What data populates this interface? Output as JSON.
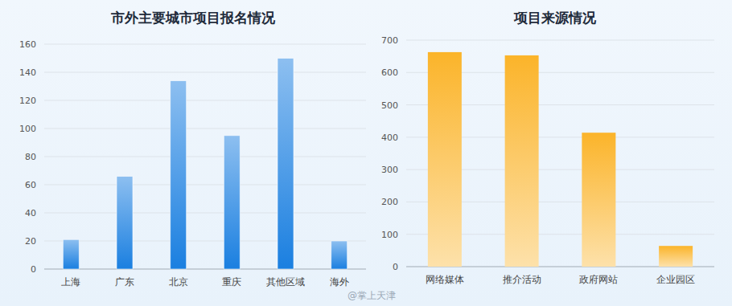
{
  "chart_data": [
    {
      "type": "bar",
      "title": "市外主要城市项目报名情况",
      "categories": [
        "上海",
        "广东",
        "北京",
        "重庆",
        "其他区域",
        "海外"
      ],
      "values": [
        21,
        66,
        134,
        95,
        150,
        20
      ],
      "color": "#1a7fe0",
      "ylim": [
        0,
        160
      ],
      "yticks": [
        0,
        20,
        40,
        60,
        80,
        100,
        120,
        140,
        160
      ],
      "grid": true
    },
    {
      "type": "bar",
      "title": "项目来源情况",
      "categories": [
        "网络媒体",
        "推介活动",
        "政府网站",
        "企业园区"
      ],
      "values": [
        663,
        653,
        414,
        64
      ],
      "color": "#fbb42a",
      "ylim": [
        0,
        700
      ],
      "yticks": [
        0,
        100,
        200,
        300,
        400,
        500,
        600,
        700
      ],
      "grid": true,
      "annotations": [
        "@掌上天津"
      ]
    }
  ]
}
